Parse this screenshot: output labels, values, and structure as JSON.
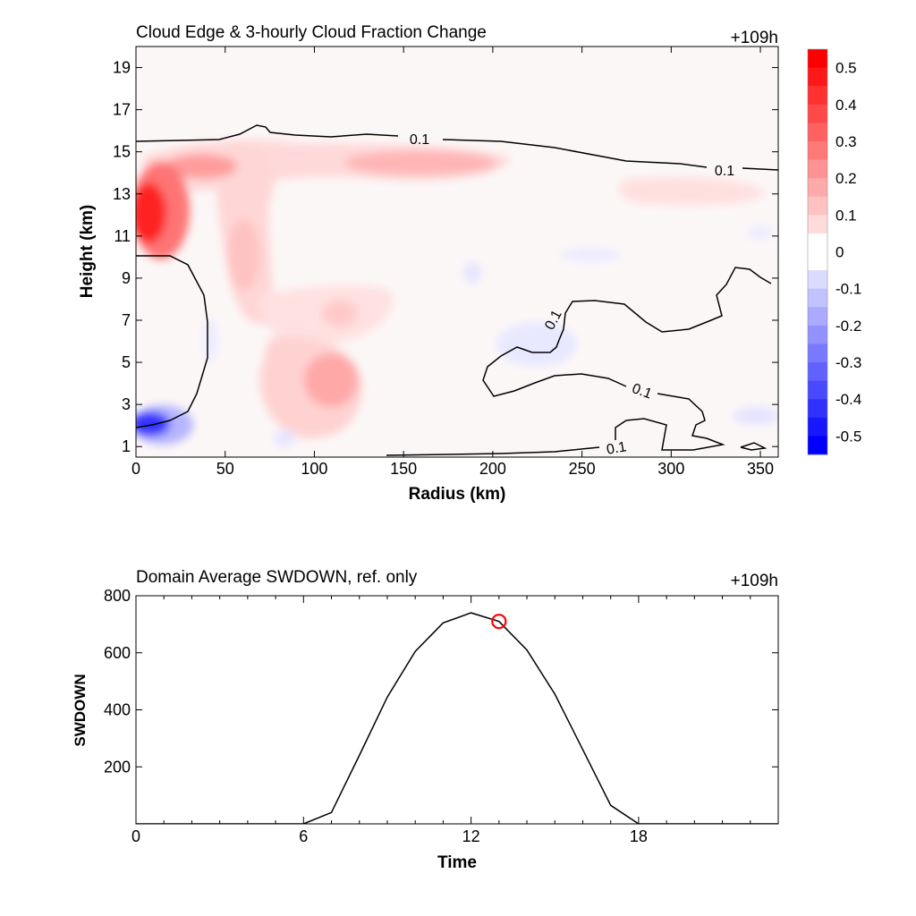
{
  "chart_data": [
    {
      "type": "heatmap",
      "title": "Cloud Edge & 3-hourly Cloud Fraction Change",
      "time_label": "+109h",
      "xlabel": "Radius (km)",
      "ylabel": "Height (km)",
      "xlim": [
        0,
        360
      ],
      "ylim": [
        0.5,
        20
      ],
      "xticks": [
        0,
        50,
        100,
        150,
        200,
        250,
        300,
        350
      ],
      "yticks": [
        1,
        3,
        5,
        7,
        9,
        11,
        13,
        15,
        17,
        19
      ],
      "colorbar": {
        "ticks": [
          0.5,
          0.4,
          0.3,
          0.2,
          0.1,
          0,
          -0.1,
          -0.2,
          -0.3,
          -0.4,
          -0.5
        ],
        "range": [
          -0.55,
          0.55
        ],
        "positive_color": "#ff0000",
        "negative_color": "#0000ff",
        "zero_color": "#ffffff"
      },
      "features": [
        {
          "kind": "positive",
          "x": 5,
          "y": 12,
          "value": 0.55
        },
        {
          "kind": "positive",
          "x": 30,
          "y": 14.3,
          "value": 0.25
        },
        {
          "kind": "positive",
          "x": 170,
          "y": 14.5,
          "value": 0.2
        },
        {
          "kind": "positive",
          "x": 110,
          "y": 4.3,
          "value": 0.2
        },
        {
          "kind": "positive",
          "x": 65,
          "y": 9.5,
          "value": 0.12
        },
        {
          "kind": "positive",
          "x": 340,
          "y": 13,
          "value": 0.08
        },
        {
          "kind": "negative",
          "x": 10,
          "y": 2.2,
          "value": -0.55
        },
        {
          "kind": "negative",
          "x": 240,
          "y": 5.8,
          "value": -0.05
        }
      ],
      "contour_level": "0.1",
      "contour_labels": [
        "0.1",
        "0.1",
        "0.1",
        "0.1",
        "0.1"
      ]
    },
    {
      "type": "line",
      "title": "Domain Average SWDOWN, ref. only",
      "time_label": "+109h",
      "xlabel": "Time",
      "ylabel": "SWDOWN",
      "xlim": [
        0,
        23
      ],
      "ylim": [
        0,
        800
      ],
      "xticks": [
        0,
        6,
        12,
        18
      ],
      "yticks": [
        200,
        400,
        600,
        800
      ],
      "series": [
        {
          "x": [
            0,
            1,
            2,
            3,
            4,
            5,
            6,
            7,
            8,
            9,
            10,
            11,
            12,
            13,
            14,
            15,
            16,
            17,
            18,
            19,
            20,
            21,
            22,
            23
          ],
          "values": [
            0,
            0,
            0,
            0,
            0,
            0,
            0,
            40,
            240,
            445,
            605,
            705,
            740,
            710,
            610,
            455,
            260,
            65,
            0,
            0,
            0,
            0,
            0,
            0
          ],
          "color": "#000000"
        }
      ],
      "marker": {
        "x": 13,
        "y": 710,
        "color": "#ff0000"
      }
    }
  ]
}
